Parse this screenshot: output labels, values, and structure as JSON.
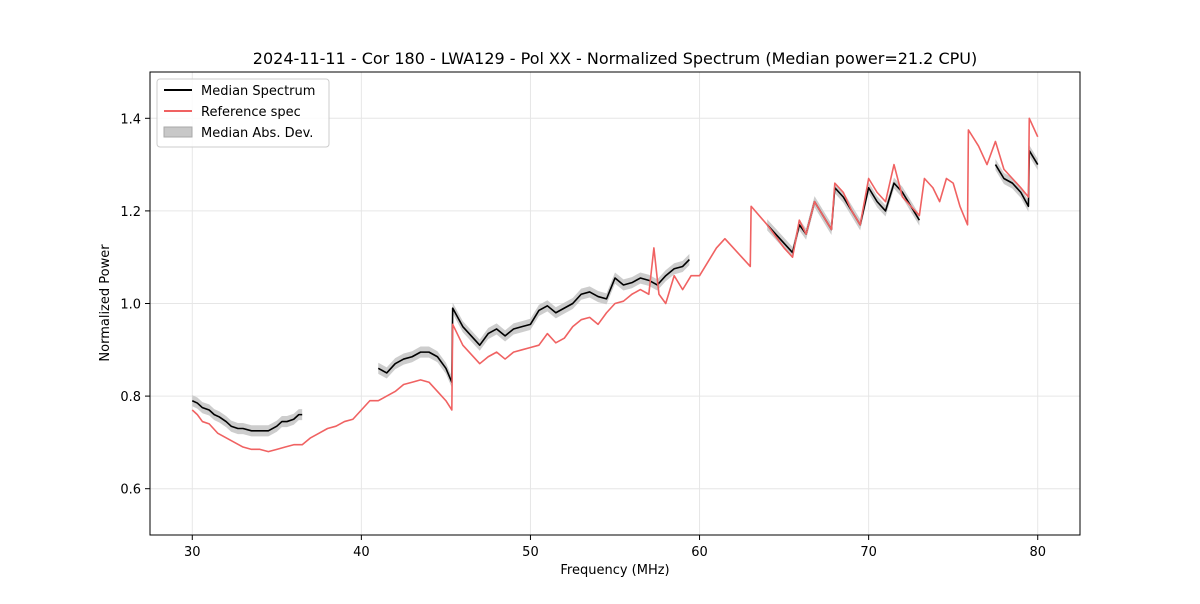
{
  "chart_data": {
    "type": "line",
    "title": "2024-11-11 - Cor 180 - LWA129 - Pol XX - Normalized Spectrum (Median power=21.2 CPU)",
    "xlabel": "Frequency (MHz)",
    "ylabel": "Normalized Power",
    "xlim": [
      27.5,
      82.5
    ],
    "ylim": [
      0.5,
      1.5
    ],
    "xticks": [
      30,
      40,
      50,
      60,
      70,
      80
    ],
    "yticks": [
      0.6,
      0.8,
      1.0,
      1.2,
      1.4
    ],
    "xtick_labels": [
      "30",
      "40",
      "50",
      "60",
      "70",
      "80"
    ],
    "ytick_labels": [
      "0.6",
      "0.8",
      "1.0",
      "1.2",
      "1.4"
    ],
    "grid": true,
    "legend_position": "top-left",
    "legend": [
      {
        "label": "Median Spectrum",
        "kind": "line",
        "color": "#000000"
      },
      {
        "label": "Reference spec",
        "kind": "line",
        "color": "#f06262"
      },
      {
        "label": "Median Abs. Dev.",
        "kind": "band",
        "color": "#c8c8c8"
      }
    ],
    "colors": {
      "median": "#000000",
      "reference": "#f06262",
      "mad": "#c8c8c8",
      "grid": "#e6e6e6"
    },
    "mad_halfwidth": 0.012,
    "reference": {
      "name": "Reference spec",
      "x": [
        30.0,
        30.3,
        30.6,
        31.0,
        31.5,
        32.0,
        32.5,
        33.0,
        33.5,
        34.0,
        34.5,
        35.0,
        35.5,
        36.0,
        36.5,
        37.0,
        37.5,
        38.0,
        38.5,
        39.0,
        39.5,
        40.0,
        40.5,
        41.0,
        41.5,
        42.0,
        42.5,
        43.0,
        43.5,
        44.0,
        44.5,
        45.0,
        45.35,
        45.4,
        46.0,
        46.5,
        47.0,
        47.5,
        48.0,
        48.5,
        49.0,
        49.5,
        50.0,
        50.5,
        51.0,
        51.5,
        52.0,
        52.5,
        53.0,
        53.5,
        54.0,
        54.5,
        55.0,
        55.5,
        56.0,
        56.5,
        57.0,
        57.3,
        57.6,
        58.0,
        58.5,
        59.0,
        59.5,
        60.0,
        60.5,
        61.0,
        61.5,
        62.0,
        62.5,
        63.0,
        63.05,
        64.0,
        65.0,
        65.5,
        65.9,
        66.3,
        66.8,
        67.3,
        67.8,
        68.0,
        68.5,
        69.0,
        69.5,
        70.0,
        70.5,
        71.0,
        71.5,
        72.0,
        72.5,
        73.0,
        73.3,
        73.8,
        74.2,
        74.6,
        75.0,
        75.4,
        75.85,
        75.9,
        76.5,
        77.0,
        77.5,
        78.0,
        78.5,
        79.0,
        79.45,
        79.5,
        80.0
      ],
      "values": [
        0.77,
        0.76,
        0.745,
        0.74,
        0.72,
        0.71,
        0.7,
        0.69,
        0.685,
        0.685,
        0.68,
        0.685,
        0.69,
        0.695,
        0.695,
        0.71,
        0.72,
        0.73,
        0.735,
        0.745,
        0.75,
        0.77,
        0.79,
        0.79,
        0.8,
        0.81,
        0.825,
        0.83,
        0.835,
        0.83,
        0.81,
        0.79,
        0.77,
        0.955,
        0.91,
        0.89,
        0.87,
        0.885,
        0.895,
        0.88,
        0.895,
        0.9,
        0.905,
        0.91,
        0.935,
        0.915,
        0.925,
        0.95,
        0.965,
        0.97,
        0.955,
        0.98,
        1.0,
        1.005,
        1.02,
        1.03,
        1.02,
        1.12,
        1.02,
        1.0,
        1.06,
        1.03,
        1.06,
        1.06,
        1.09,
        1.12,
        1.14,
        1.12,
        1.1,
        1.08,
        1.21,
        1.17,
        1.12,
        1.1,
        1.18,
        1.15,
        1.22,
        1.19,
        1.16,
        1.26,
        1.24,
        1.2,
        1.17,
        1.27,
        1.24,
        1.22,
        1.3,
        1.23,
        1.21,
        1.19,
        1.27,
        1.25,
        1.22,
        1.27,
        1.26,
        1.21,
        1.17,
        1.375,
        1.34,
        1.3,
        1.35,
        1.29,
        1.27,
        1.25,
        1.23,
        1.4,
        1.36
      ]
    },
    "median": {
      "name": "Median Spectrum",
      "segments": [
        {
          "x": [
            30.0,
            30.3,
            30.6,
            31.0,
            31.3,
            31.6,
            32.0,
            32.3,
            32.7,
            33.0,
            33.5,
            34.0,
            34.5,
            35.0,
            35.3,
            35.6,
            36.0,
            36.3,
            36.5
          ],
          "values": [
            0.79,
            0.785,
            0.775,
            0.77,
            0.76,
            0.755,
            0.745,
            0.735,
            0.73,
            0.73,
            0.725,
            0.725,
            0.725,
            0.735,
            0.745,
            0.745,
            0.75,
            0.76,
            0.76
          ]
        },
        {
          "x": [
            41.0,
            41.5,
            42.0,
            42.5,
            43.0,
            43.5,
            44.0,
            44.5,
            45.0,
            45.35,
            45.4,
            46.0,
            46.5,
            47.0,
            47.5,
            48.0,
            48.5,
            49.0,
            49.5,
            50.0,
            50.5,
            51.0,
            51.5,
            52.0,
            52.5,
            53.0,
            53.5,
            54.0,
            54.5,
            55.0,
            55.5,
            56.0,
            56.5,
            57.0,
            57.5,
            58.0,
            58.5,
            59.0,
            59.4
          ],
          "values": [
            0.86,
            0.85,
            0.87,
            0.88,
            0.885,
            0.895,
            0.895,
            0.885,
            0.86,
            0.83,
            0.99,
            0.95,
            0.93,
            0.91,
            0.935,
            0.945,
            0.93,
            0.945,
            0.95,
            0.955,
            0.985,
            0.995,
            0.98,
            0.99,
            1.0,
            1.02,
            1.025,
            1.015,
            1.01,
            1.055,
            1.04,
            1.045,
            1.055,
            1.05,
            1.04,
            1.06,
            1.075,
            1.08,
            1.095
          ]
        },
        {
          "x": [
            64.0,
            64.5,
            65.0,
            65.5,
            65.9,
            66.3,
            66.8,
            67.3,
            67.8,
            68.0,
            68.5,
            69.0,
            69.5,
            70.0,
            70.5,
            71.0,
            71.5,
            72.0,
            72.5,
            73.0
          ],
          "values": [
            1.17,
            1.15,
            1.13,
            1.11,
            1.17,
            1.15,
            1.22,
            1.19,
            1.16,
            1.25,
            1.23,
            1.2,
            1.17,
            1.25,
            1.22,
            1.2,
            1.26,
            1.24,
            1.21,
            1.18
          ]
        },
        {
          "x": [
            77.5,
            78.0,
            78.5,
            79.0,
            79.45,
            79.5,
            80.0
          ],
          "values": [
            1.3,
            1.27,
            1.26,
            1.24,
            1.21,
            1.33,
            1.3
          ]
        }
      ]
    }
  }
}
